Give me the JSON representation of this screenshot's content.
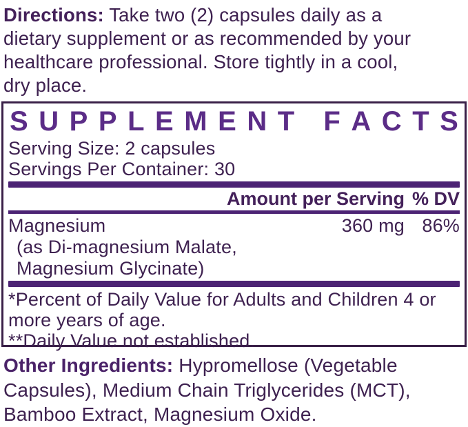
{
  "colors": {
    "body_text": "#3E2150",
    "accent_purple": "#5B2C87",
    "bar_purple": "#4C2374",
    "border_purple": "#3A2048",
    "background": "#FFFFFF"
  },
  "directions": {
    "label": "Directions:",
    "line1": "Take two (2) capsules daily as a",
    "lines": [
      "dietary supplement or as recommended by your",
      "healthcare professional. Store tightly in a cool,",
      "dry place."
    ]
  },
  "supplement_facts": {
    "title": "SUPPLEMENT FACTS",
    "serving_size": "Serving Size: 2 capsules",
    "servings_per_container": "Servings Per Container: 30",
    "header": {
      "amount_label": "Amount per Serving",
      "dv_label": "% DV"
    },
    "rows": [
      {
        "name": "Magnesium",
        "amount": "360 mg",
        "dv": "86%",
        "details": [
          "(as Di-magnesium Malate,",
          "Magnesium Glycinate)"
        ]
      }
    ],
    "footnotes": [
      "*Percent of Daily Value for Adults and Children 4 or",
      "more years of age.",
      "**Daily Value not established."
    ]
  },
  "other_ingredients": {
    "label": "Other Ingredients:",
    "line1": "Hypromellose (Vegetable",
    "lines": [
      "Capsules), Medium Chain Triglycerides (MCT),",
      "Bamboo Extract, Magnesium Oxide."
    ]
  }
}
